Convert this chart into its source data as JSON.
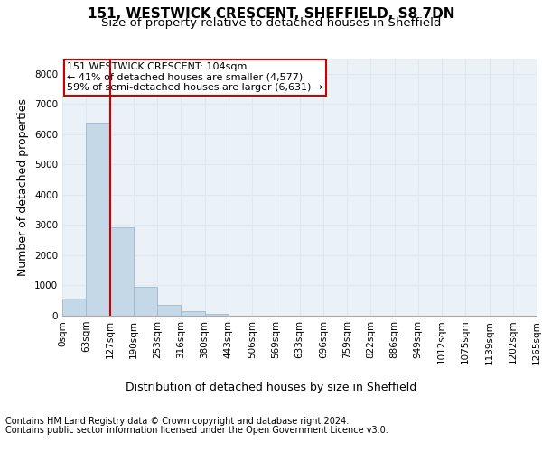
{
  "title_line1": "151, WESTWICK CRESCENT, SHEFFIELD, S8 7DN",
  "title_line2": "Size of property relative to detached houses in Sheffield",
  "xlabel": "Distribution of detached houses by size in Sheffield",
  "ylabel": "Number of detached properties",
  "footer_line1": "Contains HM Land Registry data © Crown copyright and database right 2024.",
  "footer_line2": "Contains public sector information licensed under the Open Government Licence v3.0.",
  "bin_labels": [
    "0sqm",
    "63sqm",
    "127sqm",
    "190sqm",
    "253sqm",
    "316sqm",
    "380sqm",
    "443sqm",
    "506sqm",
    "569sqm",
    "633sqm",
    "696sqm",
    "759sqm",
    "822sqm",
    "886sqm",
    "949sqm",
    "1012sqm",
    "1075sqm",
    "1139sqm",
    "1202sqm",
    "1265sqm"
  ],
  "bar_values": [
    580,
    6380,
    2920,
    960,
    360,
    135,
    65,
    0,
    0,
    0,
    0,
    0,
    0,
    0,
    0,
    0,
    0,
    0,
    0,
    0
  ],
  "bar_color": "#c5d8e8",
  "bar_edge_color": "#a0b8cc",
  "annotation_line1": "151 WESTWICK CRESCENT: 104sqm",
  "annotation_line2": "← 41% of detached houses are smaller (4,577)",
  "annotation_line3": "59% of semi-detached houses are larger (6,631) →",
  "annotation_box_color": "#ffffff",
  "annotation_box_edge_color": "#cc0000",
  "vline_x": 1.5,
  "vline_color": "#cc0000",
  "ylim": [
    0,
    8500
  ],
  "yticks": [
    0,
    1000,
    2000,
    3000,
    4000,
    5000,
    6000,
    7000,
    8000
  ],
  "grid_color": "#dde8f0",
  "bg_color": "#eaf2f8",
  "title_fontsize": 11,
  "subtitle_fontsize": 9.5,
  "tick_fontsize": 7.5,
  "label_fontsize": 9,
  "footer_fontsize": 7,
  "annot_fontsize": 8
}
